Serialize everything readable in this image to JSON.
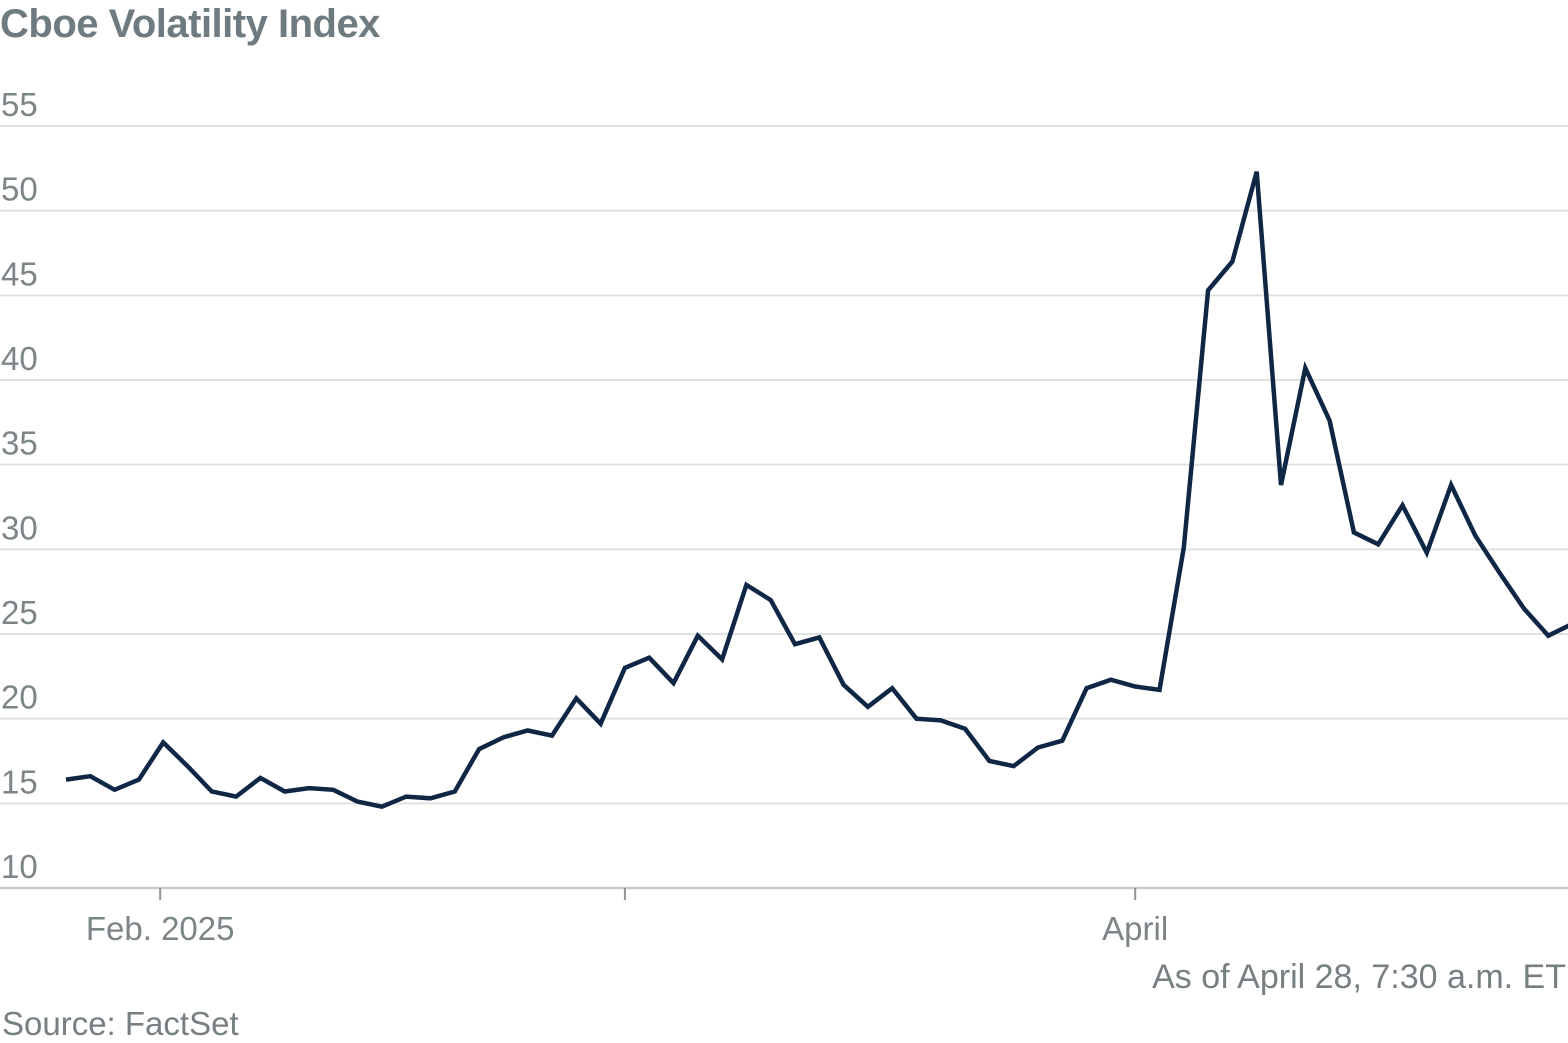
{
  "chart_data": {
    "type": "line",
    "title": "Cboe Volatility Index",
    "note": "As of April 28, 7:30 a.m. ET",
    "source": "Source: FactSet",
    "xlabel": "",
    "ylabel": "",
    "ylim": [
      10,
      55
    ],
    "yticks": [
      10,
      15,
      20,
      25,
      30,
      35,
      40,
      45,
      50,
      55
    ],
    "grid": true,
    "x_tick_labels": [
      {
        "index": 4,
        "label": "Feb. 2025"
      },
      {
        "index": 23,
        "label": ""
      },
      {
        "index": 44,
        "label": "April"
      }
    ],
    "series": [
      {
        "name": "Cboe Volatility Index",
        "color": "#0f2745",
        "values": [
          16.4,
          16.6,
          15.8,
          16.4,
          18.6,
          17.2,
          15.7,
          15.4,
          16.5,
          15.7,
          15.9,
          15.8,
          15.1,
          14.8,
          15.4,
          15.3,
          15.7,
          18.2,
          18.9,
          19.3,
          19.0,
          21.2,
          19.7,
          23.0,
          23.6,
          22.1,
          24.9,
          23.5,
          27.9,
          27.0,
          24.4,
          24.8,
          22.0,
          20.7,
          21.8,
          20.0,
          19.9,
          19.4,
          17.5,
          17.2,
          18.3,
          18.7,
          21.8,
          22.3,
          21.9,
          21.7,
          30.1,
          45.3,
          47.0,
          52.3,
          33.8,
          40.7,
          37.6,
          31.0,
          30.3,
          32.6,
          29.8,
          33.8,
          30.8,
          28.6,
          26.5,
          24.9,
          25.6
        ]
      }
    ]
  }
}
